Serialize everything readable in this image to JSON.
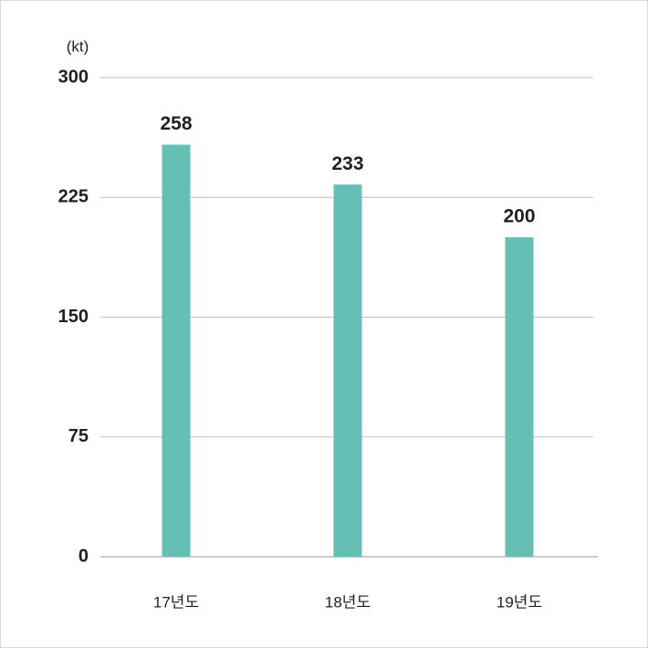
{
  "chart_data": {
    "type": "bar",
    "y_label": "(kt)",
    "categories": [
      "17년도",
      "18년도",
      "19년도"
    ],
    "values": [
      258,
      233,
      200
    ],
    "color": "#66bfb4",
    "ylim": [
      0,
      300
    ],
    "yticks": [
      0,
      75,
      150,
      225,
      300
    ],
    "grid": true
  }
}
